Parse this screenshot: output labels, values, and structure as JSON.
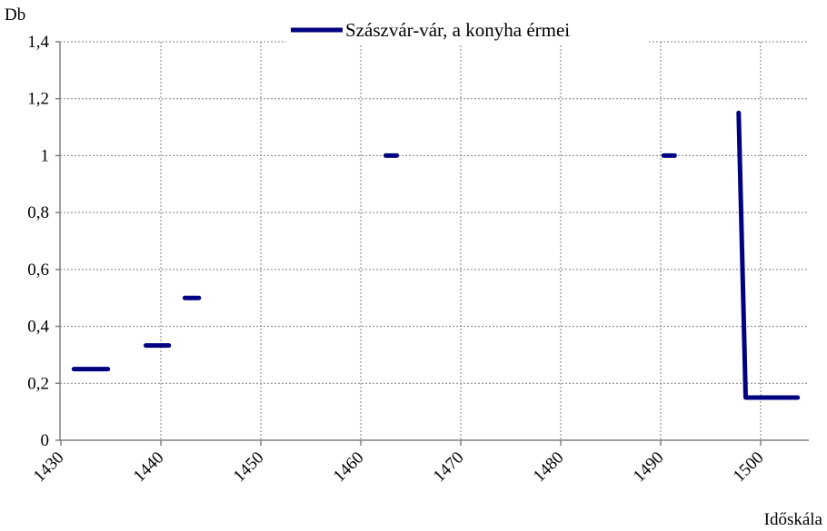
{
  "chart_data": {
    "type": "line",
    "title": "",
    "ylabel": "Db",
    "xlabel": "Időskála",
    "xlim": [
      1430,
      1505
    ],
    "ylim": [
      0,
      1.4
    ],
    "x_ticks": [
      1430,
      1440,
      1450,
      1460,
      1470,
      1480,
      1490,
      1500
    ],
    "x_tick_labels": [
      "1430",
      "1440",
      "1450",
      "1460",
      "1470",
      "1480",
      "1490",
      "1500"
    ],
    "y_ticks": [
      0,
      0.2,
      0.4,
      0.6,
      0.8,
      1.0,
      1.2,
      1.4
    ],
    "y_tick_labels": [
      "0",
      "0,2",
      "0,4",
      "0,6",
      "0,8",
      "1",
      "1,2",
      "1,4"
    ],
    "grid": true,
    "legend_position": "top-center",
    "series": [
      {
        "name": "Szászvár-vár, a konyha érmei",
        "color": "#000080",
        "segments": [
          [
            [
              1431.3,
              0.25
            ],
            [
              1434.7,
              0.25
            ]
          ],
          [
            [
              1438.5,
              0.333
            ],
            [
              1440.8,
              0.333
            ]
          ],
          [
            [
              1442.4,
              0.5
            ],
            [
              1443.8,
              0.5
            ]
          ],
          [
            [
              1462.5,
              1.0
            ],
            [
              1463.6,
              1.0
            ]
          ],
          [
            [
              1490.3,
              1.0
            ],
            [
              1491.4,
              1.0
            ]
          ],
          [
            [
              1497.8,
              1.15
            ],
            [
              1498.5,
              0.15
            ],
            [
              1503.7,
              0.15
            ]
          ]
        ]
      }
    ]
  }
}
